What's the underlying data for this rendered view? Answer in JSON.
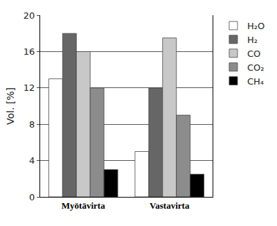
{
  "chart_data": {
    "type": "bar",
    "y_label": "Vol. [%]",
    "categories": [
      "Myötävirta",
      "Vastavirta"
    ],
    "series": [
      {
        "name": "H₂O",
        "color": "#ffffff",
        "values": [
          13,
          5
        ]
      },
      {
        "name": "H₂",
        "color": "#666666",
        "values": [
          18,
          12
        ]
      },
      {
        "name": "CO",
        "color": "#c8c8c8",
        "values": [
          16,
          17.5
        ]
      },
      {
        "name": "CO₂",
        "color": "#8c8c8c",
        "values": [
          12,
          9
        ]
      },
      {
        "name": "CH₄",
        "color": "#000000",
        "values": [
          3,
          2.5
        ]
      }
    ],
    "ylim": [
      0,
      20
    ],
    "yticks": [
      0,
      4,
      8,
      12,
      16,
      20
    ],
    "grid": true,
    "legend": "right"
  }
}
